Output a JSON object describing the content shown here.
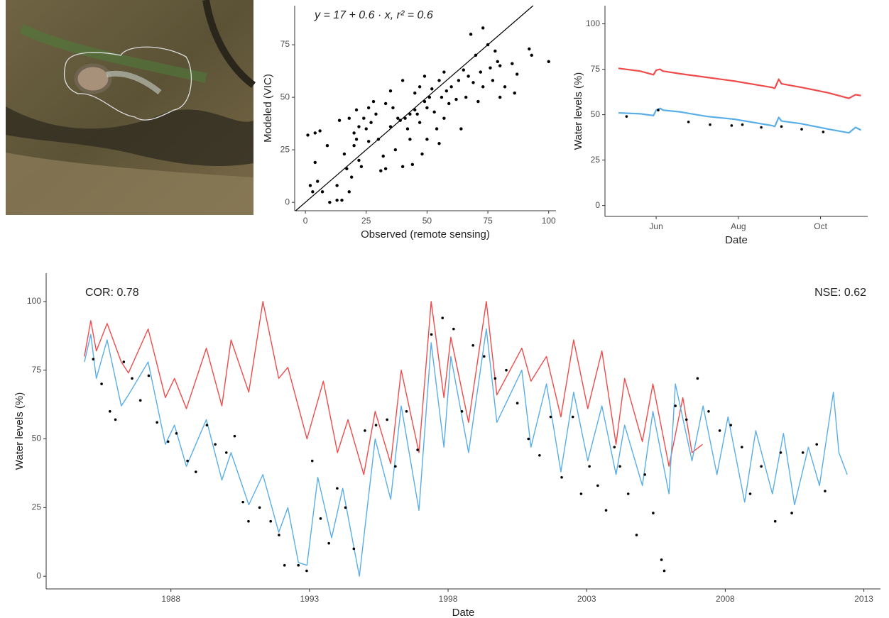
{
  "chart_data": [
    {
      "type": "scatter",
      "annotation": "y = 17 + 0.6 · x,  r² = 0.6",
      "xlabel": "Observed (remote sensing)",
      "ylabel": "Modeled (VIC)",
      "xlim": [
        -4.4,
        103
      ],
      "ylim": [
        -4,
        93.6
      ],
      "xticks": [
        0,
        25,
        50,
        75,
        100
      ],
      "yticks": [
        0,
        25,
        50,
        75
      ],
      "identity_line": true,
      "series": [
        {
          "color": "#000000",
          "x": [
            1,
            2,
            3,
            4,
            4,
            5,
            6,
            7,
            9,
            10,
            13,
            13,
            14,
            15,
            16,
            17,
            18,
            18,
            19,
            20,
            20,
            21,
            21,
            22,
            22,
            23,
            24,
            25,
            26,
            26,
            27,
            28,
            29,
            30,
            31,
            32,
            33,
            33,
            35,
            35,
            36,
            37,
            38,
            39,
            40,
            40,
            41,
            42,
            43,
            43,
            44,
            45,
            45,
            46,
            47,
            47,
            48,
            49,
            49,
            50,
            50,
            51,
            52,
            53,
            54,
            55,
            55,
            56,
            57,
            57,
            58,
            59,
            60,
            62,
            63,
            64,
            65,
            66,
            67,
            68,
            69,
            70,
            71,
            72,
            73,
            73,
            75,
            76,
            77,
            78,
            79,
            80,
            80,
            82,
            85,
            86,
            87,
            92,
            93,
            100
          ],
          "values": [
            32,
            8,
            5,
            19,
            33,
            10,
            34,
            5,
            27,
            0,
            1,
            8,
            39,
            1,
            23,
            16,
            5,
            40,
            12,
            27,
            33,
            44,
            30,
            36,
            20,
            17,
            40,
            35,
            45,
            29,
            38,
            48,
            42,
            30,
            15,
            22,
            16,
            47,
            36,
            53,
            45,
            25,
            40,
            39,
            17,
            58,
            40,
            35,
            42,
            30,
            18,
            44,
            52,
            42,
            38,
            55,
            23,
            48,
            60,
            45,
            30,
            50,
            54,
            43,
            35,
            58,
            28,
            50,
            62,
            40,
            53,
            47,
            55,
            49,
            58,
            35,
            63,
            50,
            60,
            80,
            57,
            70,
            48,
            62,
            83,
            55,
            75,
            64,
            58,
            72,
            67,
            65,
            50,
            55,
            66,
            52,
            61,
            73,
            70,
            67
          ]
        }
      ]
    },
    {
      "type": "line",
      "xlabel": "Date",
      "ylabel": "Water levels (%)",
      "xlim": [
        114,
        309
      ],
      "ylim": [
        -6,
        110
      ],
      "xticks": [
        {
          "value": 152,
          "label": "Jun"
        },
        {
          "value": 213,
          "label": "Aug"
        },
        {
          "value": 274,
          "label": "Oct"
        }
      ],
      "yticks": [
        0,
        25,
        50,
        75,
        100
      ],
      "series": [
        {
          "color": "#f04b4b",
          "x": [
            124,
            140,
            150,
            152,
            155,
            157,
            170,
            190,
            210,
            230,
            238,
            240,
            243,
            245,
            260,
            280,
            295,
            300,
            304
          ],
          "values": [
            75.5,
            74,
            72,
            74.5,
            75,
            74,
            72.5,
            70.5,
            68.5,
            66,
            65,
            64.5,
            69.5,
            67,
            65,
            62,
            59,
            61,
            60.5
          ]
        },
        {
          "color": "#5aaee8",
          "x": [
            124,
            140,
            150,
            152,
            155,
            157,
            170,
            190,
            210,
            230,
            238,
            240,
            243,
            245,
            260,
            280,
            295,
            300,
            304
          ],
          "values": [
            51,
            50.5,
            49.5,
            52.5,
            53.5,
            52.5,
            51.5,
            49,
            47.5,
            45,
            44,
            43.5,
            48.5,
            46.5,
            45,
            42,
            40,
            43,
            41.5
          ]
        },
        {
          "color": "#000000",
          "style": "points",
          "x": [
            130,
            153.5,
            176,
            192,
            208,
            216,
            230,
            245,
            260,
            276
          ],
          "values": [
            49,
            52.5,
            46,
            44.5,
            44,
            44.5,
            43,
            43.5,
            42,
            40.5
          ]
        }
      ]
    },
    {
      "type": "line",
      "xlabel": "Date",
      "ylabel": "Water levels (%)",
      "annotations": [
        "COR: 0.78",
        "NSE: 0.62"
      ],
      "xlim": [
        1983.5,
        2013.6
      ],
      "ylim": [
        -4.6,
        110.3
      ],
      "xticks": [
        1988,
        1993,
        1998,
        2003,
        2008,
        2013
      ],
      "yticks": [
        0,
        25,
        50,
        75,
        100
      ],
      "series": [
        {
          "color": "#f04b4b",
          "x": [
            1984.88,
            1985.11,
            1985.31,
            1985.7,
            1986.21,
            1986.47,
            1987.18,
            1987.8,
            1988.13,
            1988.56,
            1989.28,
            1989.84,
            1990.17,
            1990.81,
            1991.32,
            1991.89,
            1992.22,
            1992.91,
            1993.5,
            1994.01,
            1994.39,
            1994.96,
            1995.37,
            1995.93,
            1996.31,
            1996.95,
            1997.39,
            1997.85,
            1998.1,
            1998.74,
            1999.38,
            1999.76,
            2000.66,
            2000.99,
            2001.55,
            2002.07,
            2002.53,
            2003.04,
            2003.55,
            2004.06,
            2004.37,
            2005.01,
            2005.39,
            2005.97,
            2006.47,
            2006.8,
            2007.18
          ],
          "values": [
            80,
            93,
            82,
            92,
            78,
            74,
            90,
            65,
            72,
            61,
            83,
            62,
            86,
            67,
            100,
            72,
            76,
            50,
            71,
            45,
            57,
            37,
            60,
            41,
            75,
            45,
            100,
            65,
            87,
            56,
            100,
            66,
            83,
            71,
            80,
            58,
            86,
            61,
            82,
            48,
            72,
            49,
            70,
            40,
            65,
            45,
            48
          ]
        },
        {
          "color": "#5aaee8",
          "x": [
            1984.88,
            1985.11,
            1985.31,
            1985.7,
            1986.21,
            1986.47,
            1987.18,
            1987.8,
            1988.13,
            1988.56,
            1989.28,
            1989.84,
            1990.17,
            1990.81,
            1991.32,
            1991.89,
            1992.22,
            1992.6,
            1992.91,
            1993.3,
            1993.8,
            1994.2,
            1994.8,
            1995.37,
            1995.93,
            1996.31,
            1996.95,
            1997.39,
            1997.85,
            1998.1,
            1998.74,
            1999.38,
            1999.76,
            2000.66,
            2000.99,
            2001.55,
            2002.07,
            2002.53,
            2003.04,
            2003.55,
            2004.06,
            2004.37,
            2005.01,
            2005.39,
            2005.97,
            2006.2,
            2006.8,
            2007.2,
            2007.7,
            2008.1,
            2008.7,
            2009.1,
            2009.7,
            2010.1,
            2010.5,
            2011.0,
            2011.4,
            2011.9,
            2012.1,
            2012.4
          ],
          "values": [
            78,
            88,
            72,
            86,
            62,
            66,
            78,
            48,
            55,
            40,
            57,
            35,
            45,
            26,
            37,
            16,
            25,
            5,
            4,
            36,
            14,
            32,
            0,
            50,
            28,
            62,
            24,
            85,
            47,
            80,
            45,
            90,
            56,
            75,
            47,
            70,
            38,
            67,
            42,
            62,
            37,
            55,
            33,
            60,
            30,
            70,
            42,
            62,
            37,
            58,
            27,
            53,
            30,
            52,
            26,
            47,
            33,
            67,
            45,
            37
          ]
        },
        {
          "color": "#000000",
          "style": "points",
          "x": [
            1985.2,
            1985.5,
            1985.8,
            1986.0,
            1986.3,
            1986.6,
            1986.9,
            1987.2,
            1987.5,
            1987.9,
            1988.2,
            1988.6,
            1988.9,
            1989.3,
            1989.6,
            1990.0,
            1990.3,
            1990.6,
            1990.8,
            1991.2,
            1991.6,
            1991.9,
            1992.1,
            1992.6,
            1992.9,
            1993.1,
            1993.4,
            1993.7,
            1994.0,
            1994.3,
            1994.6,
            1995.0,
            1995.4,
            1995.8,
            1996.1,
            1996.5,
            1996.9,
            1997.4,
            1997.8,
            1998.2,
            1998.5,
            1998.9,
            1999.3,
            1999.7,
            2000.1,
            2000.5,
            2000.9,
            2001.3,
            2001.7,
            2002.1,
            2002.5,
            2002.8,
            2003.1,
            2003.4,
            2003.7,
            2004.0,
            2004.2,
            2004.5,
            2004.8,
            2005.1,
            2005.4,
            2005.7,
            2005.8,
            2006.2,
            2006.6,
            2007.0,
            2007.4,
            2007.8,
            2008.2,
            2008.6,
            2008.9,
            2009.3,
            2009.8,
            2010.0,
            2010.4,
            2010.8,
            2011.3,
            2011.6
          ],
          "values": [
            79,
            70,
            60,
            57,
            78,
            72,
            64,
            73,
            56,
            49,
            52,
            42,
            38,
            55,
            48,
            45,
            51,
            27,
            20,
            25,
            20,
            15,
            4,
            4,
            2,
            42,
            21,
            12,
            32,
            25,
            10,
            53,
            55,
            57,
            40,
            60,
            46,
            88,
            94,
            90,
            60,
            84,
            80,
            72,
            75,
            63,
            50,
            44,
            58,
            36,
            58,
            30,
            40,
            33,
            24,
            47,
            40,
            30,
            15,
            37,
            23,
            6,
            2,
            62,
            57,
            72,
            60,
            53,
            55,
            47,
            30,
            40,
            20,
            45,
            23,
            45,
            48,
            31
          ]
        }
      ]
    }
  ]
}
